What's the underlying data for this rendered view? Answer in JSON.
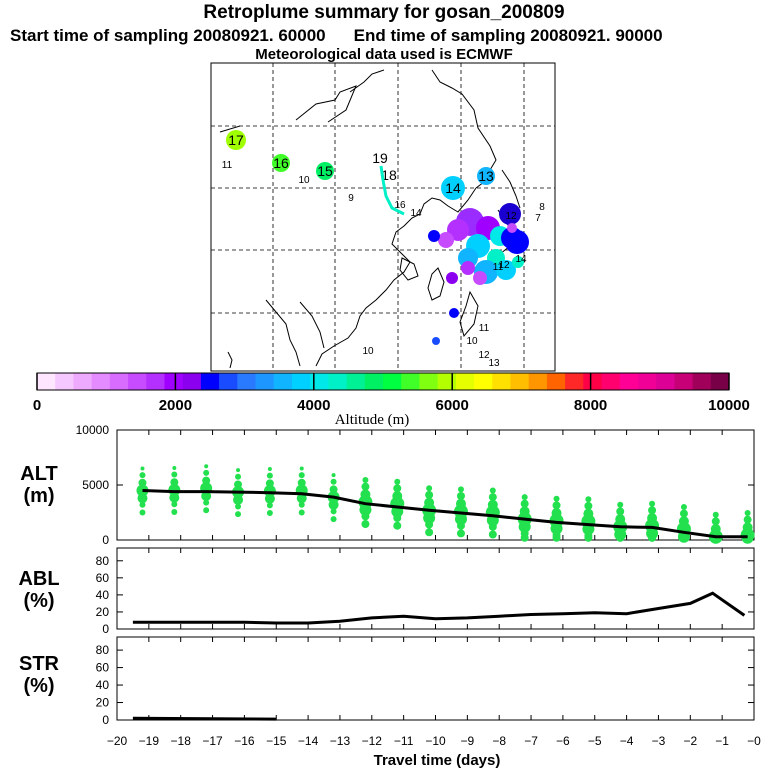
{
  "header": {
    "title": "Retroplume summary for gosan_200809",
    "start": "Start time of sampling 20080921. 60000",
    "end": "End time of sampling 20080921. 90000",
    "met": "Meteorological data used is ECMWF"
  },
  "colorbar": {
    "label": "Altitude (m)",
    "ticks": [
      "0",
      "2000",
      "4000",
      "6000",
      "8000",
      "10000"
    ],
    "colors": [
      "#ffe6ff",
      "#f5c8ff",
      "#eeaaff",
      "#e48cff",
      "#d86cff",
      "#c84cff",
      "#b430ff",
      "#a000ff",
      "#8c00f0",
      "#0000ff",
      "#1a4cff",
      "#2a7aff",
      "#1e96ff",
      "#10b4ff",
      "#00d0ff",
      "#00e8e8",
      "#00f0c8",
      "#00f096",
      "#00f064",
      "#00ff40",
      "#40ff28",
      "#80ff10",
      "#b4ff00",
      "#e6ff00",
      "#ffff00",
      "#ffe000",
      "#ffbe00",
      "#ff9600",
      "#ff6400",
      "#ff2828",
      "#ff0046",
      "#ff006e",
      "#ff0096",
      "#f00096",
      "#dc0096",
      "#c80078",
      "#a0005a",
      "#780046"
    ]
  },
  "map": {
    "plume_markers": [
      {
        "label": "17",
        "color": "#a0ff00",
        "big": true
      },
      {
        "label": "16",
        "color": "#40ff28",
        "big": true
      },
      {
        "label": "15",
        "color": "#00f064",
        "big": true
      },
      {
        "label": "14",
        "color": "#00d0ff",
        "big": true
      },
      {
        "label": "13",
        "color": "#10b4ff",
        "big": true
      },
      {
        "label": "12",
        "color": "#0000ff",
        "big": true
      },
      {
        "label": "11",
        "color": "#b4ff00",
        "big": false
      },
      {
        "label": "10",
        "color": "#80ff10",
        "big": false
      },
      {
        "label": "9",
        "color": "#40ff28",
        "big": false
      },
      {
        "label": "8",
        "color": "#b430ff",
        "big": false
      },
      {
        "label": "7",
        "color": "#c84cff",
        "big": false
      },
      {
        "label": "19",
        "color": "#ffffff",
        "big": false
      },
      {
        "label": "18",
        "color": "#ffffff",
        "big": false
      }
    ]
  },
  "chart_data": [
    {
      "type": "scatter+line",
      "name": "ALT",
      "ylabel": "ALT\n(m)",
      "ylabel_line1": "ALT",
      "ylabel_line2": "(m)",
      "ylim": [
        0,
        10000
      ],
      "yticks": [
        "10000",
        "5000",
        "0"
      ],
      "x": [
        -19.2,
        -18.2,
        -17.2,
        -16.2,
        -15.2,
        -14.2,
        -13.2,
        -12.2,
        -11.2,
        -10.2,
        -9.2,
        -8.2,
        -7.2,
        -6.2,
        -5.2,
        -4.2,
        -3.2,
        -2.2,
        -1.2,
        -0.2
      ],
      "mean_altitude": [
        4500,
        4400,
        4400,
        4350,
        4300,
        4200,
        3900,
        3300,
        3000,
        2700,
        2450,
        2200,
        1900,
        1600,
        1400,
        1200,
        1150,
        700,
        300,
        300
      ],
      "particle_color": "#22e04e"
    },
    {
      "type": "line",
      "name": "ABL",
      "ylabel_line1": "ABL",
      "ylabel_line2": "(%)",
      "ylim": [
        0,
        95
      ],
      "yticks": [
        "80",
        "60",
        "40",
        "20",
        "0"
      ],
      "x": [
        -19.5,
        -18,
        -16,
        -15,
        -14,
        -13,
        -12,
        -11,
        -10,
        -9,
        -8,
        -7,
        -6,
        -5,
        -4,
        -3,
        -2,
        -1.3,
        -0.3
      ],
      "values": [
        8,
        8,
        8,
        7,
        7,
        9,
        13,
        15,
        12,
        13,
        15,
        17,
        18,
        19,
        18,
        24,
        30,
        42,
        16
      ]
    },
    {
      "type": "line",
      "name": "STR",
      "ylabel_line1": "STR",
      "ylabel_line2": "(%)",
      "ylim": [
        0,
        95
      ],
      "yticks": [
        "80",
        "60",
        "40",
        "20",
        "0"
      ],
      "x": [
        -19.5,
        -15
      ],
      "values": [
        2,
        1
      ]
    }
  ],
  "xaxis": {
    "label": "Travel time (days)",
    "ticks": [
      "−20",
      "−19",
      "−18",
      "−17",
      "−16",
      "−15",
      "−14",
      "−13",
      "−12",
      "−11",
      "−10",
      "−9",
      "−8",
      "−7",
      "−6",
      "−5",
      "−4",
      "−3",
      "−2",
      "−1",
      "−0"
    ],
    "range": [
      -20,
      0
    ]
  }
}
